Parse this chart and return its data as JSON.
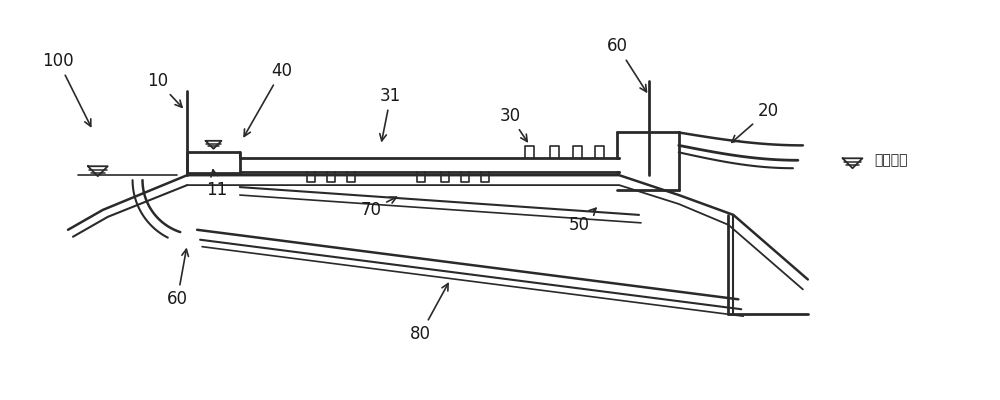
{
  "bg_color": "#ffffff",
  "line_color": "#2a2a2a",
  "label_color": "#1a1a1a",
  "figsize": [
    10,
    4
  ],
  "dpi": 100,
  "legend_text": "涨潮水位"
}
